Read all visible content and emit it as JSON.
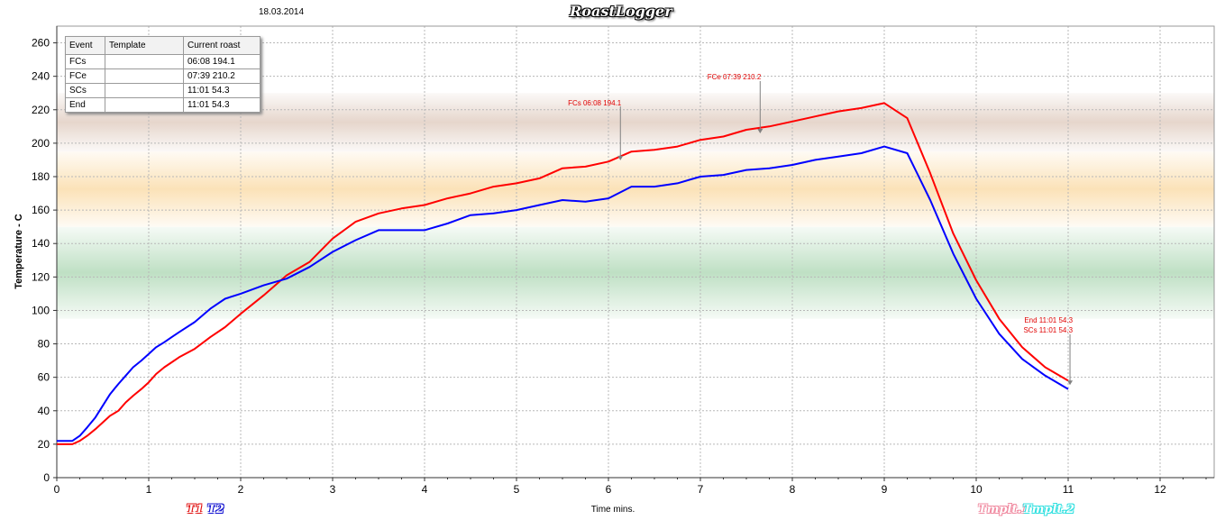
{
  "header": {
    "date": "18.03.2014",
    "app_title": "RoastLogger"
  },
  "legend": {
    "left": [
      "T1",
      "T2"
    ],
    "right": [
      "Tmplt.1",
      "Tmplt.2"
    ]
  },
  "event_table": {
    "headers": [
      "Event",
      "Template",
      "Current roast"
    ],
    "rows": [
      [
        "FCs",
        "",
        "06:08 194.1"
      ],
      [
        "FCe",
        "",
        "07:39 210.2"
      ],
      [
        "SCs",
        "",
        "11:01 54.3"
      ],
      [
        "End",
        "",
        "11:01 54.3"
      ]
    ]
  },
  "chart_data": {
    "type": "line",
    "xlabel": "Time mins.",
    "ylabel": "Temperature - C",
    "xlim": [
      0,
      12.6
    ],
    "ylim": [
      0,
      270
    ],
    "x_ticks": [
      0,
      1,
      2,
      3,
      4,
      5,
      6,
      7,
      8,
      9,
      10,
      11,
      12
    ],
    "y_ticks": [
      0,
      20,
      40,
      60,
      80,
      100,
      120,
      140,
      160,
      180,
      200,
      220,
      240,
      260
    ],
    "grid": true,
    "bands": [
      {
        "from": 95,
        "to": 150,
        "color": "#bfe0c4"
      },
      {
        "from": 150,
        "to": 195,
        "color": "#fbe2b8"
      },
      {
        "from": 195,
        "to": 230,
        "color": "#e6d6cc"
      }
    ],
    "series": [
      {
        "name": "T1",
        "color": "#ff0000",
        "x": [
          0,
          0.17,
          0.25,
          0.33,
          0.42,
          0.5,
          0.58,
          0.67,
          0.75,
          0.83,
          0.92,
          1.0,
          1.08,
          1.17,
          1.25,
          1.33,
          1.5,
          1.67,
          1.83,
          2.0,
          2.25,
          2.5,
          2.75,
          3.0,
          3.25,
          3.5,
          3.75,
          4.0,
          4.25,
          4.5,
          4.75,
          5.0,
          5.25,
          5.5,
          5.75,
          6.0,
          6.25,
          6.5,
          6.75,
          7.0,
          7.25,
          7.5,
          7.75,
          8.0,
          8.25,
          8.5,
          8.75,
          9.0,
          9.25,
          9.5,
          9.75,
          10.0,
          10.25,
          10.5,
          10.75,
          11.0
        ],
        "y": [
          20,
          20,
          22,
          25,
          29,
          33,
          37,
          40,
          45,
          49,
          53,
          57,
          62,
          66,
          69,
          72,
          77,
          84,
          90,
          98,
          109,
          121,
          129,
          143,
          153,
          158,
          161,
          163,
          167,
          170,
          174,
          176,
          179,
          185,
          186,
          189,
          195,
          196,
          198,
          202,
          204,
          208,
          210,
          213,
          216,
          219,
          221,
          224,
          215,
          182,
          146,
          118,
          95,
          78,
          66,
          58
        ]
      },
      {
        "name": "T2",
        "color": "#0000ff",
        "x": [
          0,
          0.17,
          0.25,
          0.33,
          0.42,
          0.5,
          0.58,
          0.67,
          0.75,
          0.83,
          0.92,
          1.0,
          1.08,
          1.17,
          1.25,
          1.33,
          1.5,
          1.67,
          1.83,
          2.0,
          2.25,
          2.5,
          2.75,
          3.0,
          3.25,
          3.5,
          3.75,
          4.0,
          4.25,
          4.5,
          4.75,
          5.0,
          5.25,
          5.5,
          5.75,
          6.0,
          6.25,
          6.5,
          6.75,
          7.0,
          7.25,
          7.5,
          7.75,
          8.0,
          8.25,
          8.5,
          8.75,
          9.0,
          9.25,
          9.5,
          9.75,
          10.0,
          10.25,
          10.5,
          10.75,
          11.0
        ],
        "y": [
          22,
          22,
          25,
          30,
          36,
          43,
          50,
          56,
          61,
          66,
          70,
          74,
          78,
          81,
          84,
          87,
          93,
          101,
          107,
          110,
          115,
          119,
          126,
          135,
          142,
          148,
          148,
          148,
          152,
          157,
          158,
          160,
          163,
          166,
          165,
          167,
          174,
          174,
          176,
          180,
          181,
          184,
          185,
          187,
          190,
          192,
          194,
          198,
          194,
          166,
          134,
          107,
          86,
          71,
          61,
          53
        ]
      }
    ],
    "annotations": [
      {
        "text": "FCs 06:08 194.1",
        "x": 6.13,
        "y": 194.1
      },
      {
        "text": "FCe 07:39 210.2",
        "x": 7.65,
        "y": 210.2
      },
      {
        "text": "End 11:01 54.3",
        "x": 11.02,
        "y": 54.3
      },
      {
        "text": "SCs 11:01 54.3",
        "x": 11.02,
        "y": 54.3
      }
    ]
  }
}
